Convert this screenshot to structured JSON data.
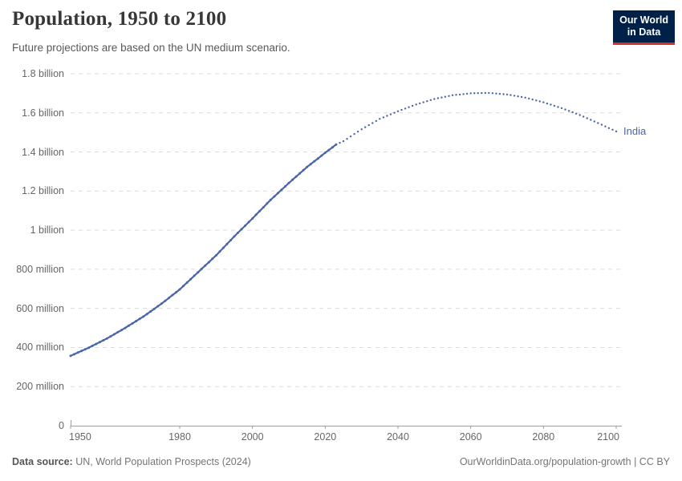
{
  "header": {
    "title": "Population, 1950 to 2100",
    "subtitle": "Future projections are based on the UN medium scenario.",
    "logo": {
      "line1": "Our World",
      "line2": "in Data",
      "bg_color": "#002147",
      "accent_color": "#d4312a"
    }
  },
  "chart_data": {
    "type": "line",
    "title": "Population, 1950 to 2100",
    "subtitle": "Future projections are based on the UN medium scenario.",
    "entity_label": "India",
    "unit": "people",
    "values_in": "millions",
    "line_color": "#4a66a8",
    "grid": true,
    "x_range": [
      1950,
      2100
    ],
    "x_ticks": [
      1950,
      1980,
      2000,
      2020,
      2040,
      2060,
      2080,
      2100
    ],
    "y_range_millions": [
      0,
      1800
    ],
    "y_ticks": [
      {
        "value": 0,
        "label": "0"
      },
      {
        "value": 200,
        "label": "200 million"
      },
      {
        "value": 400,
        "label": "400 million"
      },
      {
        "value": 600,
        "label": "600 million"
      },
      {
        "value": 800,
        "label": "800 million"
      },
      {
        "value": 1000,
        "label": "1 billion"
      },
      {
        "value": 1200,
        "label": "1.2 billion"
      },
      {
        "value": 1400,
        "label": "1.4 billion"
      },
      {
        "value": 1600,
        "label": "1.6 billion"
      },
      {
        "value": 1800,
        "label": "1.8 billion"
      }
    ],
    "series": [
      {
        "name": "India (historical estimates)",
        "style": "solid",
        "years": [
          1950,
          1955,
          1960,
          1965,
          1970,
          1975,
          1980,
          1985,
          1990,
          1995,
          2000,
          2005,
          2010,
          2015,
          2020,
          2023
        ],
        "values": [
          357,
          399,
          446,
          500,
          558,
          624,
          697,
          784,
          871,
          968,
          1060,
          1155,
          1241,
          1323,
          1396,
          1438
        ]
      },
      {
        "name": "India (UN medium projection)",
        "style": "dotted",
        "years": [
          2023,
          2025,
          2030,
          2035,
          2040,
          2045,
          2050,
          2055,
          2060,
          2065,
          2070,
          2075,
          2080,
          2085,
          2090,
          2095,
          2100
        ],
        "values": [
          1438,
          1455,
          1516,
          1569,
          1608,
          1643,
          1671,
          1690,
          1700,
          1702,
          1694,
          1678,
          1654,
          1624,
          1589,
          1548,
          1505
        ]
      }
    ]
  },
  "footer": {
    "source_label": "Data source:",
    "source_text": " UN, World Population Prospects (2024)",
    "credit": "OurWorldinData.org/population-growth | CC BY"
  }
}
